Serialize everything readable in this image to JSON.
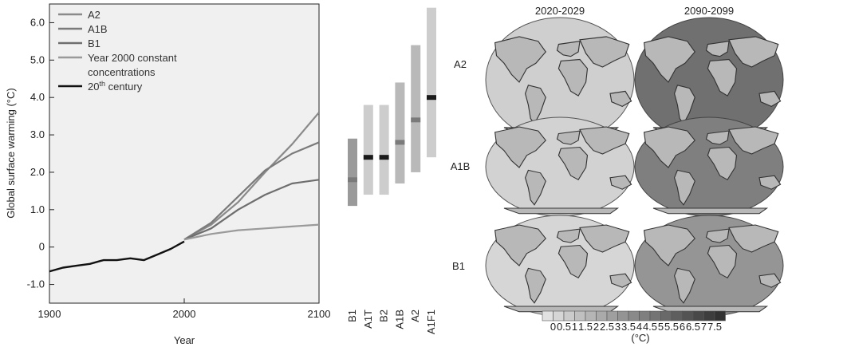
{
  "chart_data": [
    {
      "type": "line",
      "xlabel": "Year",
      "ylabel": "Global surface warming (°C)",
      "xlim": [
        1900,
        2100
      ],
      "ylim": [
        -1.5,
        6.5
      ],
      "x_ticks": [
        1900,
        2000,
        2100
      ],
      "y_ticks": [
        -1.0,
        0,
        1.0,
        2.0,
        3.0,
        4.0,
        5.0,
        6.0
      ],
      "y_tick_labels": [
        "-1.0",
        "0",
        "1.0",
        "2.0",
        "3.0",
        "4.0",
        "5.0",
        "6.0"
      ],
      "legend_position": "top-left",
      "series": [
        {
          "name": "A2",
          "color": "#8a8a8a",
          "x": [
            2000,
            2020,
            2040,
            2060,
            2080,
            2100
          ],
          "y": [
            0.2,
            0.6,
            1.2,
            2.0,
            2.75,
            3.6
          ]
        },
        {
          "name": "A1B",
          "color": "#7a7a7a",
          "x": [
            2000,
            2020,
            2040,
            2060,
            2080,
            2100
          ],
          "y": [
            0.2,
            0.65,
            1.35,
            2.05,
            2.5,
            2.8
          ]
        },
        {
          "name": "B1",
          "color": "#6e6e6e",
          "x": [
            2000,
            2020,
            2040,
            2060,
            2080,
            2100
          ],
          "y": [
            0.2,
            0.5,
            1.0,
            1.4,
            1.7,
            1.8
          ]
        },
        {
          "name": "Year 2000 constant concentrations",
          "name_lines": [
            "Year 2000 constant",
            "concentrations"
          ],
          "color": "#9a9a9a",
          "x": [
            2000,
            2020,
            2040,
            2060,
            2080,
            2100
          ],
          "y": [
            0.2,
            0.35,
            0.45,
            0.5,
            0.55,
            0.6
          ]
        },
        {
          "name": "20th century",
          "name_main": "20",
          "name_sup": "th",
          "name_rest": " century",
          "color": "#111111",
          "x": [
            1900,
            1910,
            1920,
            1930,
            1940,
            1950,
            1960,
            1970,
            1980,
            1990,
            2000
          ],
          "y": [
            -0.65,
            -0.55,
            -0.5,
            -0.45,
            -0.35,
            -0.35,
            -0.3,
            -0.35,
            -0.2,
            -0.05,
            0.15
          ]
        }
      ]
    },
    {
      "type": "bar",
      "categories": [
        "B1",
        "A1T",
        "B2",
        "A1B",
        "A2",
        "A1F1"
      ],
      "ranges": [
        [
          1.1,
          2.9
        ],
        [
          1.4,
          3.8
        ],
        [
          1.4,
          3.8
        ],
        [
          1.7,
          4.4
        ],
        [
          2.0,
          5.4
        ],
        [
          2.4,
          6.4
        ]
      ],
      "best_estimates": [
        1.8,
        2.4,
        2.4,
        2.8,
        3.4,
        4.0
      ],
      "ylim": [
        -1.5,
        6.5
      ]
    }
  ],
  "maps": {
    "column_titles": [
      "2020-2029",
      "2090-2099"
    ],
    "row_labels": [
      "A2",
      "A1B",
      "B1"
    ],
    "colorbar": {
      "tick_labels": [
        "0",
        "0.5",
        "1",
        "1.5",
        "2",
        "2.5",
        "3",
        "3.5",
        "4",
        "4.5",
        "5",
        "5.5",
        "6",
        "6.5",
        "7",
        "7.5"
      ],
      "unit_label": "(°C)"
    }
  }
}
